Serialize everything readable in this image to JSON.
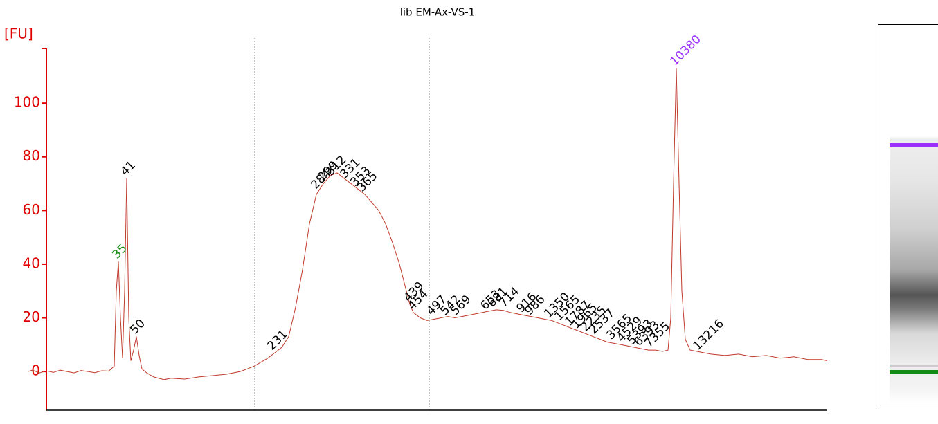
{
  "chart_data": {
    "type": "line",
    "title": "lib EM-Ax-VS-1",
    "y_label": "[FU]",
    "color": "#c0392b",
    "axis_color": "#e00000",
    "xlim": [
      -3,
      113
    ],
    "ylim": [
      -14.4,
      120.4
    ],
    "yticks": [
      0,
      20,
      40,
      60,
      80,
      100
    ],
    "x": [
      -2.7,
      -2,
      -1,
      0,
      1,
      2,
      3,
      4,
      5,
      6,
      7,
      8,
      9,
      9.8,
      10.1,
      10.4,
      10.7,
      11,
      11.3,
      11.6,
      11.9,
      12.2,
      12.6,
      13,
      13.4,
      13.8,
      14.5,
      15.5,
      17,
      18,
      20,
      22,
      24,
      26,
      28,
      29,
      30,
      31,
      32,
      33,
      34,
      35,
      36,
      37,
      38,
      39,
      40,
      41,
      42,
      43,
      44,
      45,
      46,
      47,
      48,
      49,
      50,
      51,
      52,
      52.5,
      53,
      54,
      55,
      56,
      57,
      58,
      59,
      60,
      61,
      62,
      63,
      64,
      65,
      66,
      67,
      68,
      69,
      70,
      71,
      72,
      73,
      74,
      75,
      76,
      77,
      78,
      79,
      80,
      81,
      82,
      83,
      84,
      85,
      86,
      87,
      88,
      89,
      89.8,
      90.2,
      90.6,
      91,
      91.4,
      91.8,
      92.3,
      93,
      94,
      95,
      96,
      98,
      100,
      102,
      104,
      106,
      108,
      110,
      112,
      112.8
    ],
    "values": [
      0,
      0.5,
      -0.5,
      0.3,
      -0.3,
      0.5,
      0,
      -0.5,
      0.4,
      0,
      -0.4,
      0.3,
      0.2,
      2,
      30,
      41,
      20,
      5,
      30,
      72,
      20,
      4,
      8,
      13,
      6,
      1,
      -0.5,
      -2,
      -3,
      -2.5,
      -2.8,
      -2,
      -1.5,
      -1,
      0,
      1,
      2,
      3.5,
      5,
      7,
      9,
      13,
      24,
      38,
      55,
      66,
      70,
      73,
      74,
      72,
      70,
      68,
      66,
      63,
      60,
      55,
      48,
      40,
      30,
      25,
      22,
      20,
      19,
      19.5,
      20,
      20.5,
      20,
      20.5,
      21,
      21.5,
      22,
      22.5,
      23,
      22.8,
      22,
      21.5,
      21,
      20.5,
      20,
      19.5,
      19,
      18,
      17,
      16,
      15,
      14,
      13,
      12,
      11,
      10.5,
      10,
      9.5,
      9,
      8.5,
      8,
      8,
      7.5,
      8,
      20,
      70,
      113,
      70,
      30,
      12,
      8,
      7.5,
      7,
      6.5,
      6,
      6.5,
      5.5,
      6,
      5,
      5.5,
      4.5,
      4.5,
      4
    ],
    "peaks": [
      {
        "label": "35",
        "x": 10.4,
        "value": 41,
        "color": "#138a13"
      },
      {
        "label": "41",
        "x": 11.6,
        "value": 72
      },
      {
        "label": "50",
        "x": 13.0,
        "value": 13
      },
      {
        "label": "231",
        "x": 32.8,
        "value": 7
      },
      {
        "label": "284",
        "x": 39.1,
        "value": 67
      },
      {
        "label": "299",
        "x": 40.1,
        "value": 70
      },
      {
        "label": "312",
        "x": 41.3,
        "value": 72
      },
      {
        "label": "331",
        "x": 43.3,
        "value": 71
      },
      {
        "label": "353",
        "x": 44.8,
        "value": 68
      },
      {
        "label": "365",
        "x": 45.8,
        "value": 66
      },
      {
        "label": "439",
        "x": 52.5,
        "value": 25
      },
      {
        "label": "454",
        "x": 53.1,
        "value": 22
      },
      {
        "label": "497",
        "x": 55.8,
        "value": 20
      },
      {
        "label": "542",
        "x": 57.8,
        "value": 20
      },
      {
        "label": "569",
        "x": 59.3,
        "value": 20
      },
      {
        "label": "653",
        "x": 63.6,
        "value": 22
      },
      {
        "label": "681",
        "x": 64.6,
        "value": 23
      },
      {
        "label": "714",
        "x": 66.3,
        "value": 23
      },
      {
        "label": "916",
        "x": 68.8,
        "value": 21
      },
      {
        "label": "986",
        "x": 70.0,
        "value": 20
      },
      {
        "label": "1350",
        "x": 72.8,
        "value": 19
      },
      {
        "label": "1565",
        "x": 74.3,
        "value": 18
      },
      {
        "label": "1787",
        "x": 75.8,
        "value": 16
      },
      {
        "label": "1965",
        "x": 76.8,
        "value": 15
      },
      {
        "label": "2235",
        "x": 78.1,
        "value": 14
      },
      {
        "label": "2537",
        "x": 79.3,
        "value": 13
      },
      {
        "label": "3565",
        "x": 81.8,
        "value": 11
      },
      {
        "label": "4529",
        "x": 83.3,
        "value": 10
      },
      {
        "label": "5393",
        "x": 84.8,
        "value": 9
      },
      {
        "label": "6393",
        "x": 85.8,
        "value": 8.5
      },
      {
        "label": "7355",
        "x": 87.3,
        "value": 8
      },
      {
        "label": "10380",
        "x": 91.0,
        "value": 113,
        "color": "#9b30ff"
      },
      {
        "label": "13216",
        "x": 94.3,
        "value": 7
      }
    ]
  }
}
